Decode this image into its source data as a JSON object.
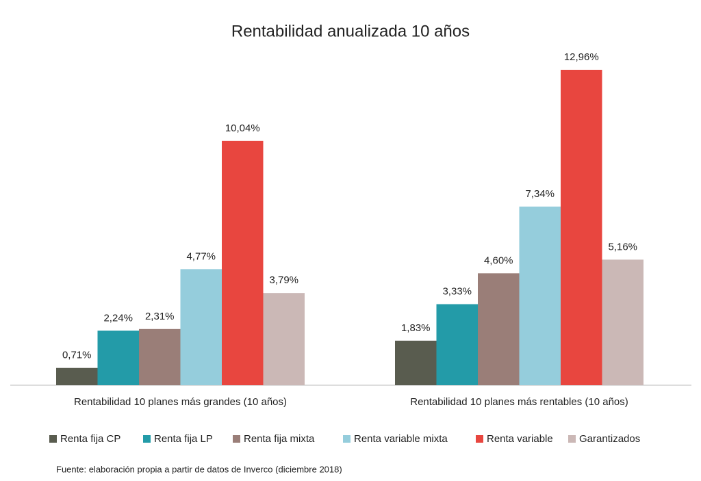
{
  "chart_data": {
    "type": "bar",
    "title": "Rentabilidad anualizada 10 años",
    "categories": [
      "Rentabilidad 10 planes más grandes (10 años)",
      "Rentabilidad 10 planes más rentables (10 años)"
    ],
    "series": [
      {
        "name": "Renta fija CP",
        "color": "#595c4f",
        "values": [
          0.71,
          1.83
        ],
        "value_labels": [
          "0,71%",
          "1,83%"
        ]
      },
      {
        "name": "Renta fija LP",
        "color": "#239ba8",
        "values": [
          2.24,
          3.33
        ],
        "value_labels": [
          "2,24%",
          "3,33%"
        ]
      },
      {
        "name": "Renta fija mixta",
        "color": "#9a7e78",
        "values": [
          2.31,
          4.6
        ],
        "value_labels": [
          "2,31%",
          "4,60%"
        ]
      },
      {
        "name": "Renta variable mixta",
        "color": "#95cddc",
        "values": [
          4.77,
          7.34
        ],
        "value_labels": [
          "4,77%",
          "7,34%"
        ]
      },
      {
        "name": "Renta variable",
        "color": "#e8463f",
        "values": [
          10.04,
          12.96
        ],
        "value_labels": [
          "10,04%",
          "12,96%"
        ]
      },
      {
        "name": "Garantizados",
        "color": "#cbb8b6",
        "values": [
          3.79,
          5.16
        ],
        "value_labels": [
          "3,79%",
          "5,16%"
        ]
      }
    ],
    "source": "Fuente: elaboración propia a partir de datos de Inverco (diciembre 2018)"
  }
}
